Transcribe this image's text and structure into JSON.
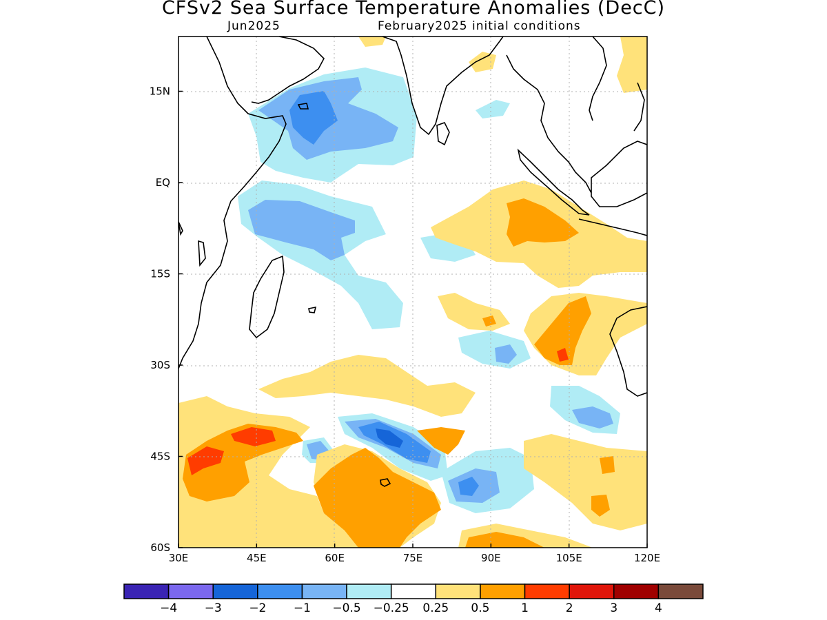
{
  "title": "CFSv2 Sea Surface Temperature Anomalies (DecC)",
  "subtitle_left": "Jun2025",
  "subtitle_right": "February2025 initial conditions",
  "map": {
    "lon_range": [
      30,
      120
    ],
    "lat_range": [
      -60,
      24
    ],
    "lon_ticks": [
      {
        "value": 30,
        "label": "30E"
      },
      {
        "value": 45,
        "label": "45E"
      },
      {
        "value": 60,
        "label": "60E"
      },
      {
        "value": 75,
        "label": "75E"
      },
      {
        "value": 90,
        "label": "90E"
      },
      {
        "value": 105,
        "label": "105E"
      },
      {
        "value": 120,
        "label": "120E"
      }
    ],
    "lat_ticks": [
      {
        "value": 15,
        "label": "15N"
      },
      {
        "value": 0,
        "label": "EQ"
      },
      {
        "value": -15,
        "label": "15S"
      },
      {
        "value": -30,
        "label": "30S"
      },
      {
        "value": -45,
        "label": "45S"
      },
      {
        "value": -60,
        "label": "60S"
      }
    ],
    "grid": true,
    "coastline_color": "#000000"
  },
  "colorbar": {
    "colors": [
      "#3a24b4",
      "#7b68ee",
      "#1565d8",
      "#3d8ff0",
      "#78b4f5",
      "#b0ecf5",
      "#ffffff",
      "#ffe27a",
      "#ffa000",
      "#ff3c00",
      "#e0150a",
      "#a00000",
      "#7a4a3a"
    ],
    "labels": [
      "−4",
      "−3",
      "−2",
      "−1",
      "−0.5",
      "−0.25",
      "0.25",
      "0.5",
      "1",
      "2",
      "3",
      "4"
    ]
  }
}
